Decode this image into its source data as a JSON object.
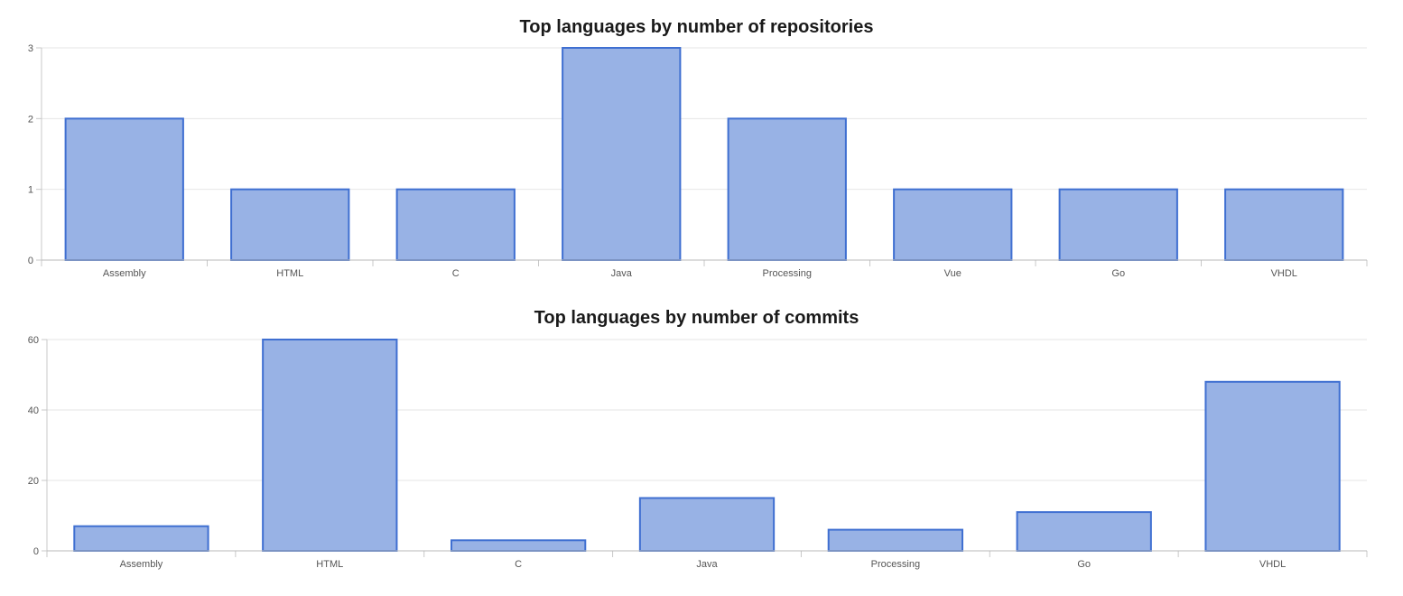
{
  "chart_data": [
    {
      "type": "bar",
      "title": "Top languages by number of repositories",
      "categories": [
        "Assembly",
        "HTML",
        "C",
        "Java",
        "Processing",
        "Vue",
        "Go",
        "VHDL"
      ],
      "values": [
        2,
        1,
        1,
        3,
        2,
        1,
        1,
        1
      ],
      "ylim": [
        0,
        3
      ],
      "yticks": [
        0,
        1,
        2,
        3
      ],
      "xlabel": "",
      "ylabel": "",
      "grid": true,
      "legend": "none",
      "bar_fill": "#98b2e5",
      "bar_stroke": "#3f6fd1"
    },
    {
      "type": "bar",
      "title": "Top languages by number of commits",
      "categories": [
        "Assembly",
        "HTML",
        "C",
        "Java",
        "Processing",
        "Go",
        "VHDL"
      ],
      "values": [
        7,
        60,
        3,
        15,
        6,
        11,
        48
      ],
      "ylim": [
        0,
        60
      ],
      "yticks": [
        0,
        20,
        40,
        60
      ],
      "xlabel": "",
      "ylabel": "",
      "grid": true,
      "legend": "none",
      "bar_fill": "#98b2e5",
      "bar_stroke": "#3f6fd1"
    }
  ]
}
